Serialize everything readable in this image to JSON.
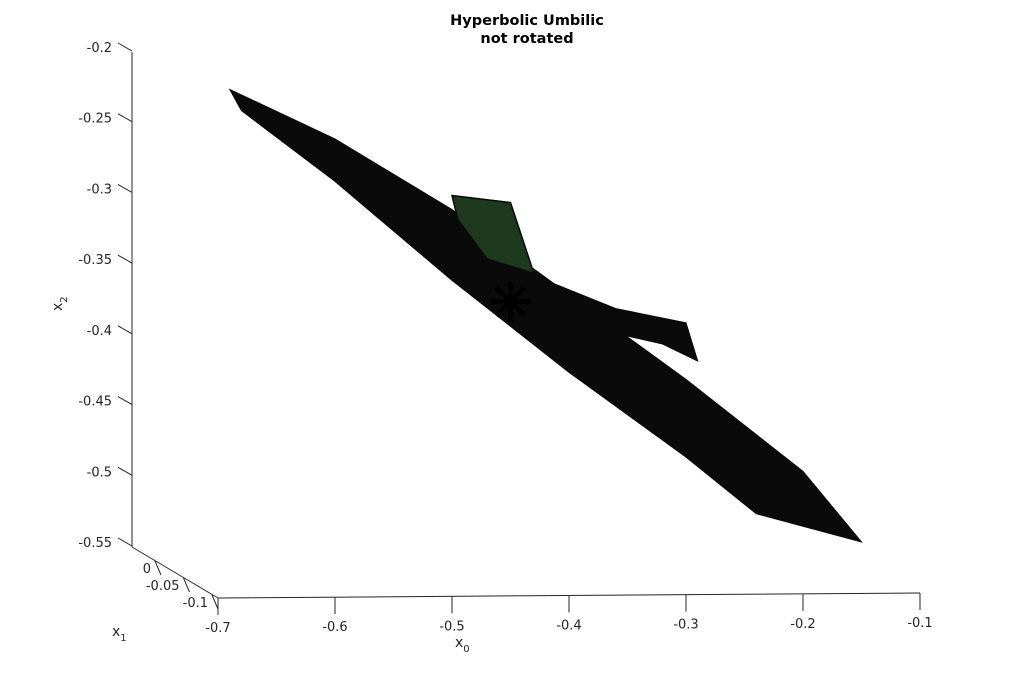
{
  "chart_data": {
    "type": "surface3d",
    "title": [
      "Hyperbolic Umbilic",
      "not rotated"
    ],
    "axes": {
      "x0": {
        "label": "x",
        "subscript": "0",
        "ticks": [
          -0.7,
          -0.6,
          -0.5,
          -0.4,
          -0.3,
          -0.2,
          -0.1
        ],
        "tick_labels": [
          "-0.7",
          "-0.6",
          "-0.5",
          "-0.4",
          "-0.3",
          "-0.2",
          "-0.1"
        ],
        "lim": [
          -0.7,
          -0.1
        ]
      },
      "x1": {
        "label": "x",
        "subscript": "1",
        "ticks": [
          0,
          -0.05,
          -0.1
        ],
        "tick_labels": [
          "0",
          "-0.05",
          "-0.1"
        ],
        "lim": [
          -0.1,
          0
        ]
      },
      "x2": {
        "label": "x",
        "subscript": "2",
        "ticks": [
          -0.2,
          -0.25,
          -0.3,
          -0.35,
          -0.4,
          -0.45,
          -0.5,
          -0.55
        ],
        "tick_labels": [
          "-0.2",
          "-0.25",
          "-0.3",
          "-0.35",
          "-0.4",
          "-0.45",
          "-0.5",
          "-0.55"
        ],
        "lim": [
          -0.55,
          -0.2
        ]
      }
    },
    "grid": false,
    "surface_color": "#0a0a0a",
    "surface_tint": "#1e3a1e",
    "marker": {
      "symbol": "*",
      "color": "#000000",
      "x0": -0.45,
      "x2": -0.38
    },
    "surface_outline": [
      {
        "x0": -0.69,
        "x2": -0.23
      },
      {
        "x0": -0.6,
        "x2": -0.265
      },
      {
        "x0": -0.5,
        "x2": -0.315
      },
      {
        "x0": -0.4,
        "x2": -0.375
      },
      {
        "x0": -0.3,
        "x2": -0.435
      },
      {
        "x0": -0.2,
        "x2": -0.5
      },
      {
        "x0": -0.15,
        "x2": -0.55
      },
      {
        "x0": -0.24,
        "x2": -0.53
      },
      {
        "x0": -0.3,
        "x2": -0.49
      },
      {
        "x0": -0.4,
        "x2": -0.43
      },
      {
        "x0": -0.5,
        "x2": -0.365
      },
      {
        "x0": -0.6,
        "x2": -0.295
      },
      {
        "x0": -0.68,
        "x2": -0.245
      }
    ],
    "fold_upper": [
      {
        "x0": -0.5,
        "x2": -0.305
      },
      {
        "x0": -0.45,
        "x2": -0.31
      },
      {
        "x0": -0.43,
        "x2": -0.36
      },
      {
        "x0": -0.47,
        "x2": -0.35
      },
      {
        "x0": -0.495,
        "x2": -0.322
      }
    ],
    "fold_lower": [
      {
        "x0": -0.42,
        "x2": -0.365
      },
      {
        "x0": -0.36,
        "x2": -0.385
      },
      {
        "x0": -0.3,
        "x2": -0.395
      },
      {
        "x0": -0.29,
        "x2": -0.422
      },
      {
        "x0": -0.32,
        "x2": -0.41
      },
      {
        "x0": -0.4,
        "x2": -0.395
      }
    ]
  }
}
